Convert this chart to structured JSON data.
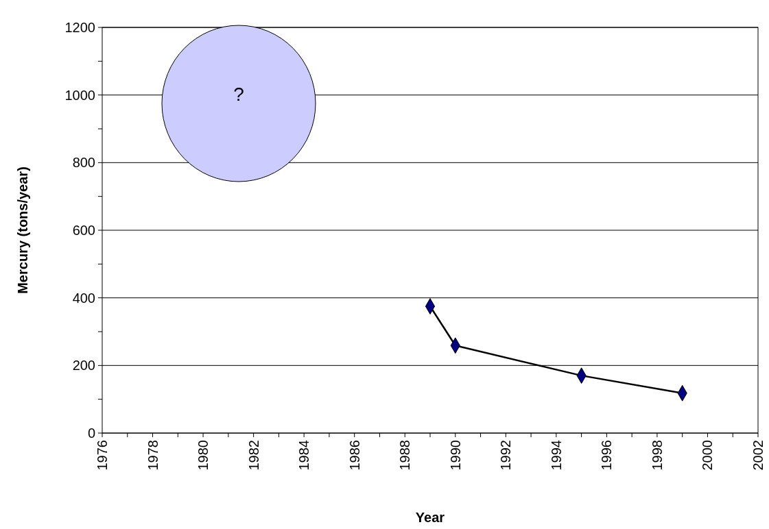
{
  "chart_data": {
    "type": "line",
    "xlabel": "Year",
    "ylabel": "Mercury (tons/year)",
    "x": [
      1989,
      1990,
      1995,
      1999
    ],
    "series": [
      {
        "color": "#000080",
        "values": [
          375,
          259,
          170,
          118
        ]
      }
    ],
    "marker": "diamond",
    "line_style": "solid",
    "grid": "y",
    "xlim": [
      1976,
      2002
    ],
    "xticks": [
      1976,
      {
        "value": 1977,
        "label": null
      },
      1978,
      {
        "value": 1979,
        "label": null
      },
      1980,
      {
        "value": 1981,
        "label": null
      },
      1982,
      {
        "value": 1983,
        "label": null
      },
      1984,
      {
        "value": 1985,
        "label": null
      },
      1986,
      {
        "value": 1987,
        "label": null
      },
      1988,
      {
        "value": 1989,
        "label": null
      },
      1990,
      {
        "value": 1991,
        "label": null
      },
      1992,
      {
        "value": 1993,
        "label": null
      },
      1994,
      {
        "value": 1995,
        "label": null
      },
      1996,
      {
        "value": 1997,
        "label": null
      },
      1998,
      {
        "value": 1999,
        "label": null
      },
      2000,
      {
        "value": 2001,
        "label": null
      },
      2002
    ],
    "ylim": [
      0,
      1200
    ],
    "yticks": [
      0,
      {
        "value": 100,
        "label": null
      },
      200,
      {
        "value": 300,
        "label": null
      },
      400,
      {
        "value": 500,
        "label": null
      },
      600,
      {
        "value": 700,
        "label": null
      },
      800,
      {
        "value": 900,
        "label": null
      },
      1000,
      {
        "value": 1100,
        "label": null
      },
      1200
    ],
    "annotations": [
      "?"
    ]
  }
}
